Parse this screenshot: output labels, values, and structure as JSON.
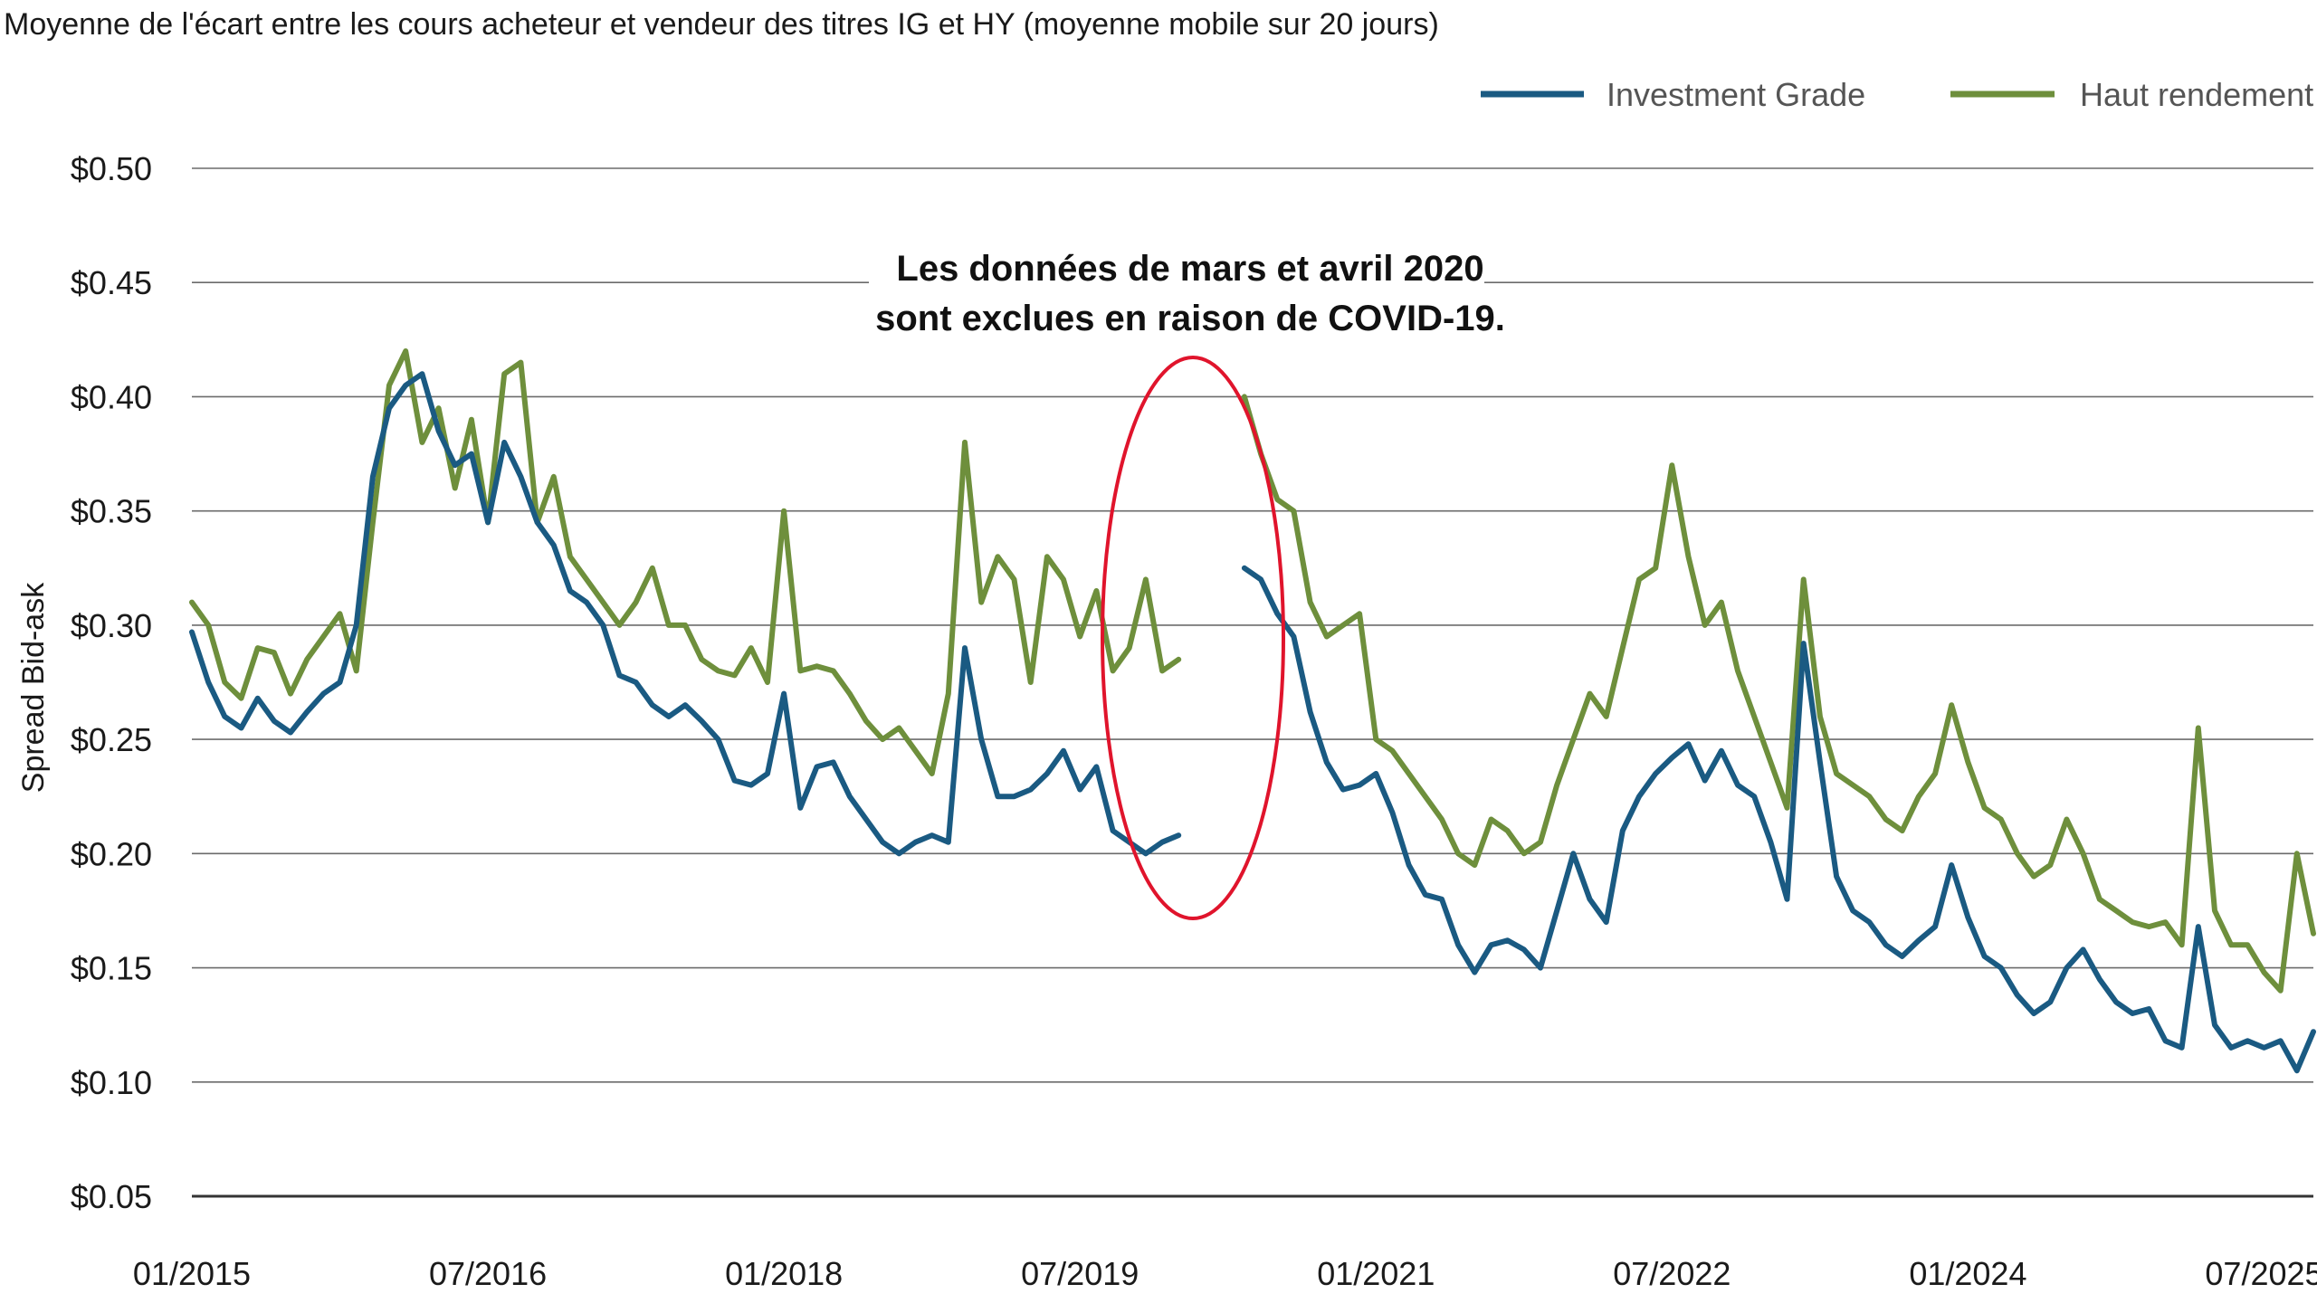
{
  "chart_data": {
    "type": "line",
    "title": "Moyenne de l'écart entre les cours acheteur et vendeur des titres IG et HY (moyenne mobile sur 20 jours)",
    "ylabel": "Spread Bid-ask",
    "xlabel": "",
    "ylim": [
      0.05,
      0.5
    ],
    "yticks": [
      0.5,
      0.45,
      0.4,
      0.35,
      0.3,
      0.25,
      0.2,
      0.15,
      0.1,
      0.05
    ],
    "ytick_labels": [
      "$0.50",
      "$0.45",
      "$0.40",
      "$0.35",
      "$0.30",
      "$0.25",
      "$0.20",
      "$0.15",
      "$0.10",
      "$0.05"
    ],
    "xlim": [
      "2015-01",
      "2025-10"
    ],
    "xticks": [
      "2015-01",
      "2016-07",
      "2018-01",
      "2019-07",
      "2021-01",
      "2022-07",
      "2024-01",
      "2025-07"
    ],
    "xtick_labels": [
      "01/2015",
      "07/2016",
      "01/2018",
      "07/2019",
      "01/2021",
      "07/2022",
      "01/2024",
      "07/2025"
    ],
    "grid": true,
    "legend_position": "top-right",
    "annotation": {
      "lines": [
        "Les données de mars et avril 2020",
        "sont exclues en raison de COVID-19."
      ],
      "highlight_color": "#e0142c"
    },
    "x": [
      "2015-01",
      "2015-02",
      "2015-03",
      "2015-04",
      "2015-05",
      "2015-06",
      "2015-07",
      "2015-08",
      "2015-09",
      "2015-10",
      "2015-11",
      "2015-12",
      "2016-01",
      "2016-02",
      "2016-03",
      "2016-04",
      "2016-05",
      "2016-06",
      "2016-07",
      "2016-08",
      "2016-09",
      "2016-10",
      "2016-11",
      "2016-12",
      "2017-01",
      "2017-02",
      "2017-03",
      "2017-04",
      "2017-05",
      "2017-06",
      "2017-07",
      "2017-08",
      "2017-09",
      "2017-10",
      "2017-11",
      "2017-12",
      "2018-01",
      "2018-02",
      "2018-03",
      "2018-04",
      "2018-05",
      "2018-06",
      "2018-07",
      "2018-08",
      "2018-09",
      "2018-10",
      "2018-11",
      "2018-12",
      "2019-01",
      "2019-02",
      "2019-03",
      "2019-04",
      "2019-05",
      "2019-06",
      "2019-07",
      "2019-08",
      "2019-09",
      "2019-10",
      "2019-11",
      "2019-12",
      "2020-01",
      "2020-02",
      "2020-03",
      "2020-04",
      "2020-05",
      "2020-06",
      "2020-07",
      "2020-08",
      "2020-09",
      "2020-10",
      "2020-11",
      "2020-12",
      "2021-01",
      "2021-02",
      "2021-03",
      "2021-04",
      "2021-05",
      "2021-06",
      "2021-07",
      "2021-08",
      "2021-09",
      "2021-10",
      "2021-11",
      "2021-12",
      "2022-01",
      "2022-02",
      "2022-03",
      "2022-04",
      "2022-05",
      "2022-06",
      "2022-07",
      "2022-08",
      "2022-09",
      "2022-10",
      "2022-11",
      "2022-12",
      "2023-01",
      "2023-02",
      "2023-03",
      "2023-04",
      "2023-05",
      "2023-06",
      "2023-07",
      "2023-08",
      "2023-09",
      "2023-10",
      "2023-11",
      "2023-12",
      "2024-01",
      "2024-02",
      "2024-03",
      "2024-04",
      "2024-05",
      "2024-06",
      "2024-07",
      "2024-08",
      "2024-09",
      "2024-10",
      "2024-11",
      "2024-12",
      "2025-01",
      "2025-02",
      "2025-03",
      "2025-04",
      "2025-05",
      "2025-06",
      "2025-07",
      "2025-08",
      "2025-09",
      "2025-10"
    ],
    "series": [
      {
        "name": "Investment Grade",
        "color": "#1a5a82",
        "values": [
          0.297,
          0.275,
          0.26,
          0.255,
          0.268,
          0.258,
          0.253,
          0.262,
          0.27,
          0.275,
          0.3,
          0.365,
          0.395,
          0.405,
          0.41,
          0.385,
          0.37,
          0.375,
          0.345,
          0.38,
          0.365,
          0.345,
          0.335,
          0.315,
          0.31,
          0.3,
          0.278,
          0.275,
          0.265,
          0.26,
          0.265,
          0.258,
          0.25,
          0.232,
          0.23,
          0.235,
          0.27,
          0.22,
          0.238,
          0.24,
          0.225,
          0.215,
          0.205,
          0.2,
          0.205,
          0.208,
          0.205,
          0.29,
          0.25,
          0.225,
          0.225,
          0.228,
          0.235,
          0.245,
          0.228,
          0.238,
          0.21,
          0.205,
          0.2,
          0.205,
          0.208,
          null,
          null,
          null,
          0.325,
          0.32,
          0.305,
          0.295,
          0.262,
          0.24,
          0.228,
          0.23,
          0.235,
          0.218,
          0.195,
          0.182,
          0.18,
          0.16,
          0.148,
          0.16,
          0.162,
          0.158,
          0.15,
          0.175,
          0.2,
          0.18,
          0.17,
          0.21,
          0.225,
          0.235,
          0.242,
          0.248,
          0.232,
          0.245,
          0.23,
          0.225,
          0.205,
          0.18,
          0.292,
          0.24,
          0.19,
          0.175,
          0.17,
          0.16,
          0.155,
          0.162,
          0.168,
          0.195,
          0.172,
          0.155,
          0.15,
          0.138,
          0.13,
          0.135,
          0.15,
          0.158,
          0.145,
          0.135,
          0.13,
          0.132,
          0.118,
          0.115,
          0.168,
          0.125,
          0.115,
          0.118,
          0.115,
          0.118,
          0.105,
          0.122
        ]
      },
      {
        "name": "Haut rendement",
        "color": "#6e8f3c",
        "values": [
          0.31,
          0.3,
          0.275,
          0.268,
          0.29,
          0.288,
          0.27,
          0.285,
          0.295,
          0.305,
          0.28,
          0.345,
          0.405,
          0.42,
          0.38,
          0.395,
          0.36,
          0.39,
          0.345,
          0.41,
          0.415,
          0.345,
          0.365,
          0.33,
          0.32,
          0.31,
          0.3,
          0.31,
          0.325,
          0.3,
          0.3,
          0.285,
          0.28,
          0.278,
          0.29,
          0.275,
          0.35,
          0.28,
          0.282,
          0.28,
          0.27,
          0.258,
          0.25,
          0.255,
          0.245,
          0.235,
          0.27,
          0.38,
          0.31,
          0.33,
          0.32,
          0.275,
          0.33,
          0.32,
          0.295,
          0.315,
          0.28,
          0.29,
          0.32,
          0.28,
          0.285,
          null,
          null,
          null,
          0.4,
          0.375,
          0.355,
          0.35,
          0.31,
          0.295,
          0.3,
          0.305,
          0.25,
          0.245,
          0.235,
          0.225,
          0.215,
          0.2,
          0.195,
          0.215,
          0.21,
          0.2,
          0.205,
          0.23,
          0.25,
          0.27,
          0.26,
          0.29,
          0.32,
          0.325,
          0.37,
          0.33,
          0.3,
          0.31,
          0.28,
          0.26,
          0.24,
          0.22,
          0.32,
          0.26,
          0.235,
          0.23,
          0.225,
          0.215,
          0.21,
          0.225,
          0.235,
          0.265,
          0.24,
          0.22,
          0.215,
          0.2,
          0.19,
          0.195,
          0.215,
          0.2,
          0.18,
          0.175,
          0.17,
          0.168,
          0.17,
          0.16,
          0.255,
          0.175,
          0.16,
          0.16,
          0.148,
          0.14,
          0.2,
          0.165
        ]
      }
    ]
  }
}
